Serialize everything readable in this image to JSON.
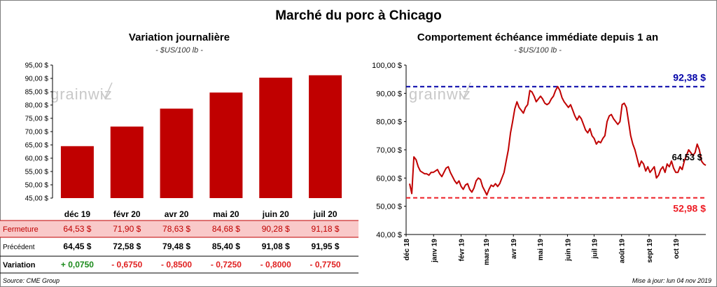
{
  "title": "Marché du porc à Chicago",
  "chart_data": [
    {
      "type": "bar",
      "title": "Variation journalière",
      "subtitle": "- $US/100 lb -",
      "categories": [
        "déc 19",
        "févr 20",
        "avr 20",
        "mai 20",
        "juin 20",
        "juil 20"
      ],
      "values": [
        64.53,
        71.9,
        78.63,
        84.68,
        90.28,
        91.18
      ],
      "ylim": [
        45,
        95
      ],
      "yticks": [
        "45,00 $",
        "50,00 $",
        "55,00 $",
        "60,00 $",
        "65,00 $",
        "70,00 $",
        "75,00 $",
        "80,00 $",
        "85,00 $",
        "90,00 $",
        "95,00 $"
      ],
      "color": "#c00000",
      "watermark": "grainwiz",
      "table": {
        "rows": [
          {
            "label": "Fermeture",
            "cells": [
              "64,53  $",
              "71,90  $",
              "78,63  $",
              "84,68  $",
              "90,28  $",
              "91,18  $"
            ]
          },
          {
            "label": "Précédent",
            "cells": [
              "64,45  $",
              "72,58  $",
              "79,48  $",
              "85,40  $",
              "91,08  $",
              "91,95  $"
            ]
          },
          {
            "label": "Variation",
            "cells": [
              "+ 0,0750",
              "- 0,6750",
              "- 0,8500",
              "- 0,7250",
              "- 0,8000",
              "- 0,7750"
            ]
          }
        ]
      }
    },
    {
      "type": "line",
      "title": "Comportement  échéance immédiate depuis 1 an",
      "subtitle": "- $US/100 lb -",
      "ylim": [
        40,
        100
      ],
      "yticks": [
        "40,00 $",
        "50,00 $",
        "60,00 $",
        "70,00 $",
        "80,00 $",
        "90,00 $",
        "100,00 $"
      ],
      "xticks": [
        "déc 18",
        "janv 19",
        "févr 19",
        "mars 19",
        "avr 19",
        "mai 19",
        "juin 19",
        "juil 19",
        "août 19",
        "sept 19",
        "oct 19"
      ],
      "x_start": "2018-12-01",
      "x_end": "2019-11-04",
      "series": [
        {
          "color": "#c00000",
          "values": [
            58,
            54.5,
            67.5,
            66.5,
            64,
            62.5,
            62,
            61.5,
            61.5,
            61,
            62,
            62,
            62.5,
            63,
            61.5,
            60.5,
            62,
            63.5,
            64,
            62,
            60.5,
            59,
            58,
            59,
            57,
            56,
            57.5,
            58,
            56,
            55,
            56.5,
            59,
            60,
            59.5,
            57,
            55.5,
            54,
            56,
            57.5,
            57,
            58,
            57,
            58,
            60,
            62,
            66,
            70,
            76,
            80,
            84.5,
            87,
            85,
            84,
            83,
            85,
            86,
            91,
            90.5,
            89,
            87,
            88,
            89,
            88,
            86.5,
            86,
            86.5,
            88,
            89,
            91,
            92.4,
            91,
            88.5,
            87,
            86,
            85,
            86,
            84,
            82,
            80.5,
            82,
            81,
            79,
            77,
            76,
            77.5,
            75,
            74,
            72,
            73,
            72.5,
            74,
            75,
            80,
            82,
            82.5,
            81,
            80,
            79,
            80,
            86,
            86.5,
            85,
            80,
            75,
            72,
            70,
            67,
            64,
            66,
            65,
            62.5,
            64,
            62,
            63,
            64,
            60,
            61,
            63,
            64,
            62,
            65,
            64,
            66,
            63.5,
            62,
            62,
            64,
            63,
            66,
            68,
            70,
            69,
            68,
            69,
            72,
            70,
            66,
            65,
            64.5
          ]
        }
      ],
      "hlines": [
        {
          "value": 92.38,
          "label": "92,38 $",
          "color": "#0000a8"
        },
        {
          "value": 52.98,
          "label": "52,98 $",
          "color": "#ee1c24"
        }
      ],
      "last_label": "64,53 $",
      "watermark": "grainwiz"
    }
  ],
  "footer": {
    "source": "Source: CME Group",
    "update": "Mise à jour: lun 04 nov 2019"
  }
}
